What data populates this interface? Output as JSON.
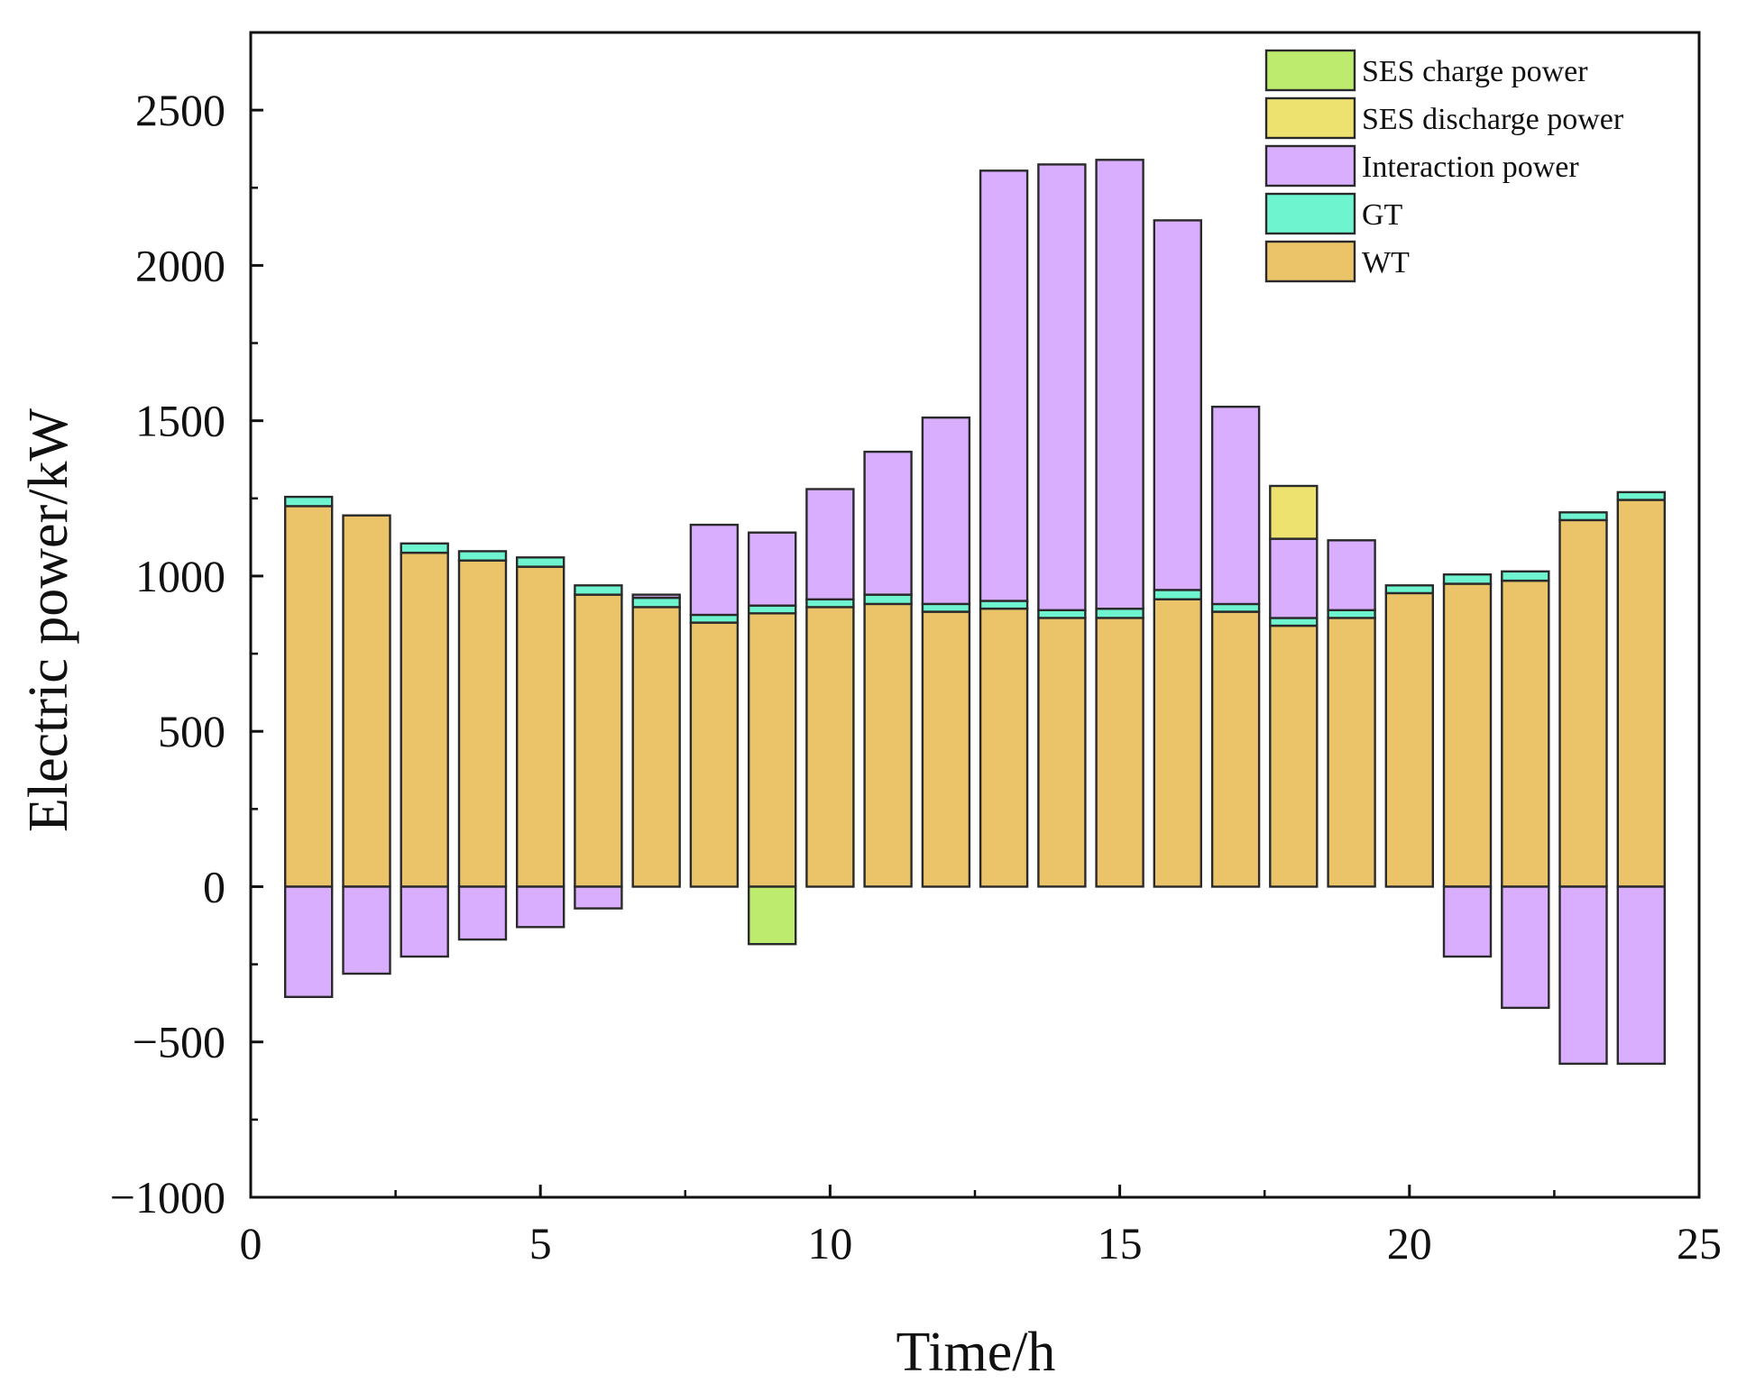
{
  "chart_data": {
    "type": "bar",
    "stacked": true,
    "title": "",
    "xlabel": "Time/h",
    "ylabel": "Electric power/kW",
    "xlim": [
      0,
      25
    ],
    "ylim": [
      -1000,
      2750
    ],
    "xticks": [
      0,
      5,
      10,
      15,
      20,
      25
    ],
    "xtick_labels": [
      "0",
      "5",
      "10",
      "15",
      "20",
      "25"
    ],
    "yticks": [
      -1000,
      -500,
      0,
      500,
      1000,
      1500,
      2000,
      2500
    ],
    "ytick_labels": [
      "−1000",
      "−500",
      "0",
      "500",
      "1000",
      "1500",
      "2000",
      "2500"
    ],
    "legend_position": "top-right",
    "x": [
      1,
      2,
      3,
      4,
      5,
      6,
      7,
      8,
      9,
      10,
      11,
      12,
      13,
      14,
      15,
      16,
      17,
      18,
      19,
      20,
      21,
      22,
      23,
      24
    ],
    "series": [
      {
        "name": "WT",
        "color": "#EBC46A",
        "values": [
          1225,
          1195,
          1075,
          1050,
          1030,
          940,
          900,
          850,
          880,
          900,
          910,
          885,
          895,
          865,
          865,
          925,
          885,
          840,
          865,
          945,
          975,
          985,
          1180,
          1245
        ]
      },
      {
        "name": "GT",
        "color": "#6EF5CF",
        "values": [
          30,
          0,
          30,
          30,
          30,
          30,
          30,
          25,
          25,
          25,
          30,
          25,
          25,
          25,
          30,
          30,
          25,
          25,
          25,
          25,
          30,
          30,
          25,
          25
        ]
      },
      {
        "name": "Interaction power",
        "color": "#D9AEFF",
        "values": [
          -355,
          -280,
          -225,
          -170,
          -130,
          -70,
          10,
          290,
          235,
          355,
          460,
          600,
          1385,
          1435,
          1445,
          1190,
          635,
          255,
          225,
          0,
          -225,
          -390,
          -570,
          -570
        ]
      },
      {
        "name": "SES discharge power",
        "color": "#EDE170",
        "values": [
          0,
          0,
          0,
          0,
          0,
          0,
          0,
          0,
          0,
          0,
          0,
          0,
          0,
          0,
          0,
          0,
          0,
          170,
          0,
          0,
          0,
          0,
          0,
          0
        ]
      },
      {
        "name": "SES charge power",
        "color": "#BDEB6E",
        "values": [
          0,
          0,
          0,
          0,
          0,
          0,
          0,
          0,
          -185,
          0,
          0,
          0,
          0,
          0,
          0,
          0,
          0,
          0,
          0,
          0,
          0,
          0,
          0,
          0
        ]
      }
    ],
    "legend_order": [
      "SES charge power",
      "SES discharge power",
      "Interaction power",
      "GT",
      "WT"
    ]
  }
}
